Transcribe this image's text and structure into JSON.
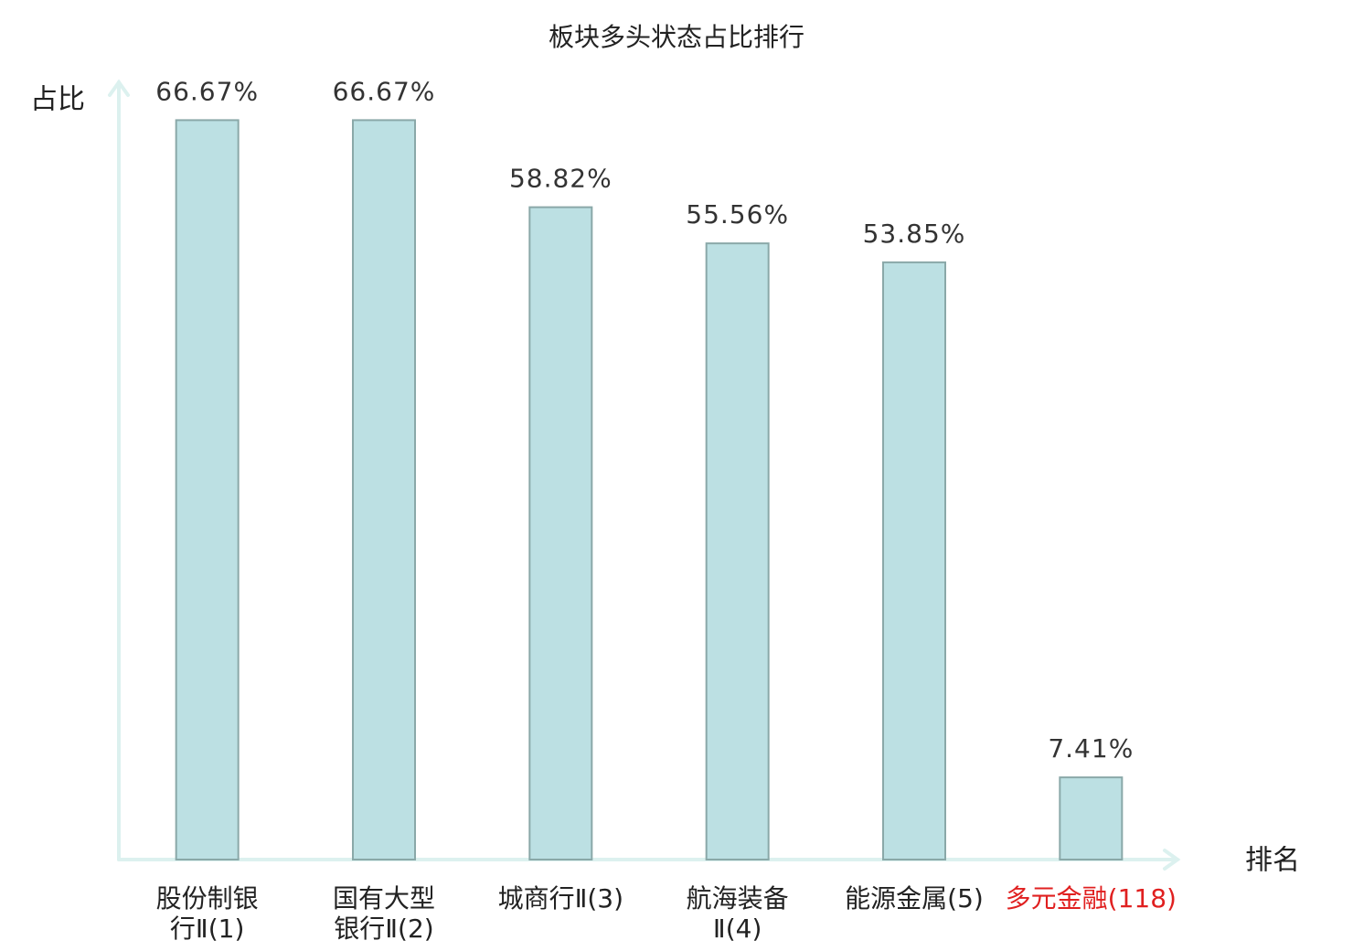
{
  "chart_data": {
    "type": "bar",
    "title": "板块多头状态占比排行",
    "y_label": "占比",
    "x_label": "排名",
    "categories": [
      "股份制银行Ⅱ(1)",
      "国有大型银行Ⅱ(2)",
      "城商行Ⅱ(3)",
      "航海装备Ⅱ(4)",
      "能源金属(5)",
      "多元金融(118)"
    ],
    "values": [
      66.67,
      66.67,
      58.82,
      55.56,
      53.85,
      7.41
    ],
    "value_labels": [
      "66.67%",
      "66.67%",
      "58.82%",
      "55.56%",
      "53.85%",
      "7.41%"
    ],
    "color": "#bce0e3",
    "edge_color": "#8aa8a8",
    "highlight_index": 5,
    "highlight_color": "#e02020",
    "ylim": [
      0,
      70
    ]
  }
}
